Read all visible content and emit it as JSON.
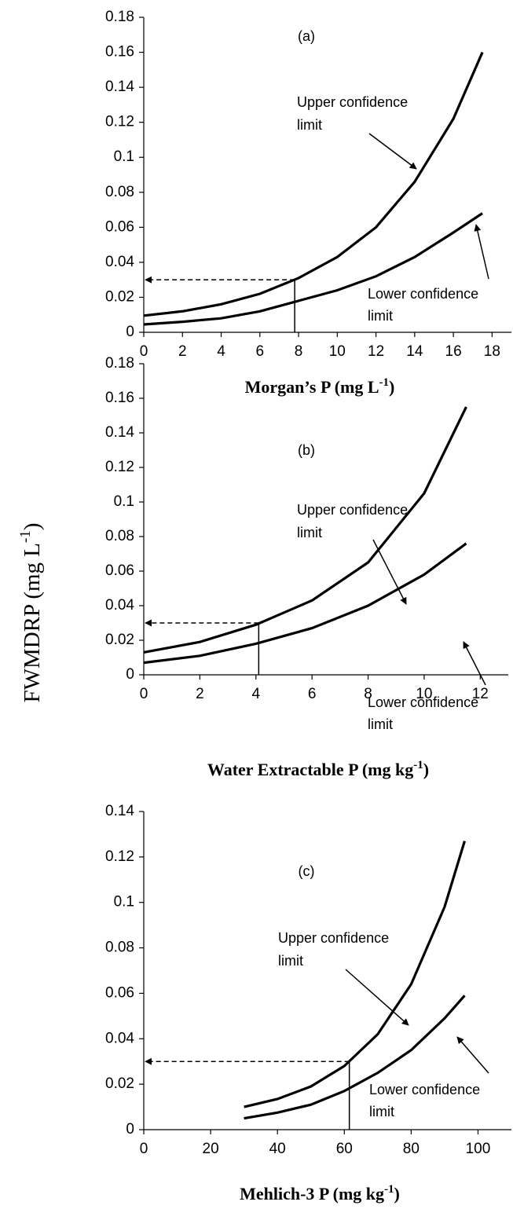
{
  "ylabel": {
    "text": "FWMDRP (mg  L",
    "sup": "-1",
    "end": ")"
  },
  "chart_data": [
    {
      "type": "line",
      "xlabel": {
        "text": "Morgan’s P (mg L",
        "sup": "-1",
        "end": ")"
      },
      "x": [
        0,
        2,
        4,
        6,
        8,
        10,
        12,
        14,
        16,
        17.5
      ],
      "series": [
        {
          "name": "Upper confidence limit",
          "color": "#000000",
          "values": [
            0.0095,
            0.012,
            0.016,
            0.022,
            0.031,
            0.043,
            0.06,
            0.086,
            0.122,
            0.16
          ]
        },
        {
          "name": "Lower confidence limit",
          "color": "#000000",
          "values": [
            0.0045,
            0.006,
            0.008,
            0.012,
            0.018,
            0.024,
            0.032,
            0.043,
            0.057,
            0.068
          ]
        }
      ],
      "guide": {
        "x": 7.8,
        "y": 0.03
      },
      "annotations": {
        "label": "(a)",
        "upper": [
          "Upper confidence",
          "limit"
        ],
        "lower": [
          "Lower confidence",
          "limit"
        ]
      },
      "xlim": [
        0,
        19
      ],
      "xticks": [
        0,
        2,
        4,
        6,
        8,
        10,
        12,
        14,
        16,
        18
      ],
      "ylim": [
        0,
        0.18
      ],
      "yticks": [
        0,
        0.02,
        0.04,
        0.06,
        0.08,
        0.1,
        0.12,
        0.14,
        0.16,
        0.18
      ]
    },
    {
      "type": "line",
      "xlabel": {
        "text": "Water Extractable P (mg kg",
        "sup": "-1",
        "end": ")"
      },
      "x": [
        0,
        2,
        4,
        6,
        8,
        10,
        11.5
      ],
      "series": [
        {
          "name": "Upper confidence limit",
          "color": "#000000",
          "values": [
            0.013,
            0.019,
            0.029,
            0.043,
            0.065,
            0.105,
            0.155
          ]
        },
        {
          "name": "Lower confidence limit",
          "color": "#000000",
          "values": [
            0.007,
            0.011,
            0.018,
            0.027,
            0.04,
            0.058,
            0.076
          ]
        }
      ],
      "guide": {
        "x": 4.1,
        "y": 0.03
      },
      "annotations": {
        "label": "(b)",
        "upper": [
          "Upper confidence",
          "limit"
        ],
        "lower": [
          "Lower confidence",
          "limit"
        ]
      },
      "xlim": [
        0,
        13
      ],
      "xticks": [
        0,
        2,
        4,
        6,
        8,
        10,
        12
      ],
      "ylim": [
        0,
        0.18
      ],
      "yticks": [
        0,
        0.02,
        0.04,
        0.06,
        0.08,
        0.1,
        0.12,
        0.14,
        0.16,
        0.18
      ]
    },
    {
      "type": "line",
      "xlabel": {
        "text": "Mehlich-3 P (mg kg",
        "sup": "-1",
        "end": ")"
      },
      "x": [
        30,
        40,
        50,
        60,
        70,
        80,
        90,
        96
      ],
      "series": [
        {
          "name": "Upper confidence limit",
          "color": "#000000",
          "values": [
            0.01,
            0.0135,
            0.019,
            0.028,
            0.042,
            0.064,
            0.098,
            0.127
          ]
        },
        {
          "name": "Lower confidence limit",
          "color": "#000000",
          "values": [
            0.005,
            0.0075,
            0.011,
            0.017,
            0.025,
            0.035,
            0.049,
            0.059
          ]
        }
      ],
      "guide": {
        "x": 61.5,
        "y": 0.03
      },
      "annotations": {
        "label": "(c)",
        "upper": [
          "Upper confidence",
          "limit"
        ],
        "lower": [
          "Lower confidence",
          "limit"
        ]
      },
      "xlim": [
        0,
        110
      ],
      "xticks": [
        0,
        20,
        40,
        60,
        80,
        100
      ],
      "ylim": [
        0,
        0.14
      ],
      "yticks": [
        0,
        0.02,
        0.04,
        0.06,
        0.08,
        0.1,
        0.12,
        0.14
      ]
    }
  ]
}
